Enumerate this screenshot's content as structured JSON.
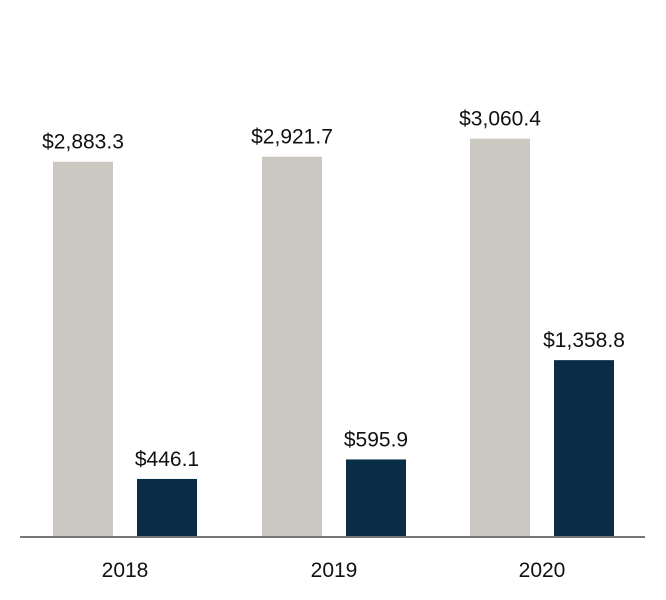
{
  "chart_data": {
    "type": "bar",
    "categories": [
      "2018",
      "2019",
      "2020"
    ],
    "series": [
      {
        "values": [
          2883.3,
          2921.7,
          3060.4
        ],
        "labels": [
          "$2,883.3",
          "$2,921.7",
          "$3,060.4"
        ],
        "color": "#cbc8c2"
      },
      {
        "values": [
          446.1,
          595.9,
          1358.8
        ],
        "labels": [
          "$446.1",
          "$595.9",
          "$1,358.8"
        ],
        "color": "#0a2d47"
      }
    ],
    "axis_color": "#777777",
    "ylim": [
      0,
      3150
    ],
    "grid": false,
    "legend": "none"
  }
}
